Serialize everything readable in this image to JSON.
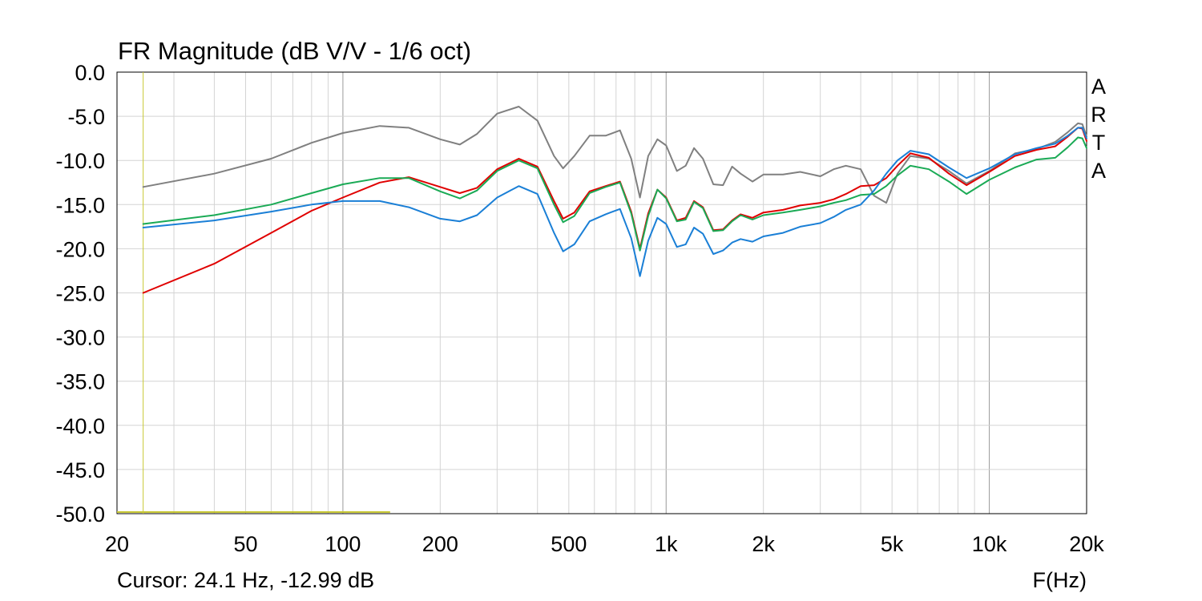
{
  "chart_data": {
    "type": "line",
    "title": "FR Magnitude (dB V/V - 1/6 oct)",
    "xlabel": "F(Hz)",
    "ylabel": "",
    "x_scale": "log",
    "xlim": [
      20,
      20000
    ],
    "ylim": [
      -50,
      0
    ],
    "x_ticks": [
      20,
      50,
      100,
      200,
      500,
      1000,
      2000,
      5000,
      10000,
      20000
    ],
    "x_tick_labels": [
      "20",
      "50",
      "100",
      "200",
      "500",
      "1k",
      "2k",
      "5k",
      "10k",
      "20k"
    ],
    "y_ticks": [
      0,
      -5,
      -10,
      -15,
      -20,
      -25,
      -30,
      -35,
      -40,
      -45,
      -50
    ],
    "y_tick_labels": [
      "0.0",
      "-5.0",
      "-10.0",
      "-15.0",
      "-20.0",
      "-25.0",
      "-30.0",
      "-35.0",
      "-40.0",
      "-45.0",
      "-50.0"
    ],
    "grid": true,
    "watermark": [
      "A",
      "R",
      "T",
      "A"
    ],
    "cursor": {
      "label": "Cursor: 24.1 Hz, -12.99 dB",
      "freq": 24.1,
      "db": -12.99
    },
    "colors": {
      "gray": "#808080",
      "red": "#e00000",
      "green": "#1aaa55",
      "blue": "#1a7fd6",
      "grid_major": "#999999",
      "grid_minor": "#d4d4d4",
      "cursor": "#c8c832"
    },
    "series": [
      {
        "name": "gray",
        "color": "#808080",
        "points": [
          [
            24.1,
            -13.0
          ],
          [
            40,
            -11.5
          ],
          [
            60,
            -9.8
          ],
          [
            80,
            -8.0
          ],
          [
            100,
            -6.9
          ],
          [
            130,
            -6.1
          ],
          [
            160,
            -6.3
          ],
          [
            200,
            -7.6
          ],
          [
            230,
            -8.2
          ],
          [
            260,
            -7.0
          ],
          [
            300,
            -4.7
          ],
          [
            350,
            -3.9
          ],
          [
            400,
            -5.5
          ],
          [
            450,
            -9.5
          ],
          [
            480,
            -10.9
          ],
          [
            520,
            -9.5
          ],
          [
            580,
            -7.2
          ],
          [
            650,
            -7.2
          ],
          [
            720,
            -6.6
          ],
          [
            780,
            -9.8
          ],
          [
            830,
            -14.2
          ],
          [
            880,
            -9.5
          ],
          [
            940,
            -7.6
          ],
          [
            1000,
            -8.3
          ],
          [
            1080,
            -11.2
          ],
          [
            1150,
            -10.6
          ],
          [
            1220,
            -8.6
          ],
          [
            1300,
            -9.8
          ],
          [
            1400,
            -12.7
          ],
          [
            1500,
            -12.8
          ],
          [
            1600,
            -10.7
          ],
          [
            1700,
            -11.5
          ],
          [
            1850,
            -12.4
          ],
          [
            2000,
            -11.6
          ],
          [
            2300,
            -11.6
          ],
          [
            2600,
            -11.3
          ],
          [
            3000,
            -11.8
          ],
          [
            3300,
            -11.0
          ],
          [
            3600,
            -10.6
          ],
          [
            4000,
            -11.0
          ],
          [
            4400,
            -14.0
          ],
          [
            4800,
            -14.8
          ],
          [
            5200,
            -11.5
          ],
          [
            5700,
            -9.5
          ],
          [
            6500,
            -9.8
          ],
          [
            7500,
            -11.2
          ],
          [
            8500,
            -12.6
          ],
          [
            10000,
            -11.2
          ],
          [
            12000,
            -9.2
          ],
          [
            14000,
            -8.7
          ],
          [
            16000,
            -7.9
          ],
          [
            17500,
            -6.8
          ],
          [
            18800,
            -5.8
          ],
          [
            19400,
            -5.9
          ],
          [
            20000,
            -7.3
          ]
        ]
      },
      {
        "name": "red",
        "color": "#e00000",
        "points": [
          [
            24.1,
            -25.0
          ],
          [
            40,
            -21.7
          ],
          [
            60,
            -18.2
          ],
          [
            80,
            -15.7
          ],
          [
            100,
            -14.2
          ],
          [
            130,
            -12.5
          ],
          [
            160,
            -11.9
          ],
          [
            200,
            -13.0
          ],
          [
            230,
            -13.7
          ],
          [
            260,
            -13.1
          ],
          [
            300,
            -11.0
          ],
          [
            350,
            -9.8
          ],
          [
            400,
            -10.7
          ],
          [
            450,
            -14.6
          ],
          [
            480,
            -16.6
          ],
          [
            520,
            -15.9
          ],
          [
            580,
            -13.5
          ],
          [
            650,
            -12.9
          ],
          [
            720,
            -12.4
          ],
          [
            780,
            -15.8
          ],
          [
            830,
            -20.0
          ],
          [
            880,
            -16.0
          ],
          [
            940,
            -13.3
          ],
          [
            1000,
            -14.2
          ],
          [
            1080,
            -16.8
          ],
          [
            1150,
            -16.5
          ],
          [
            1220,
            -14.6
          ],
          [
            1300,
            -15.3
          ],
          [
            1400,
            -17.9
          ],
          [
            1500,
            -17.8
          ],
          [
            1600,
            -16.8
          ],
          [
            1700,
            -16.1
          ],
          [
            1850,
            -16.5
          ],
          [
            2000,
            -15.9
          ],
          [
            2300,
            -15.6
          ],
          [
            2600,
            -15.1
          ],
          [
            3000,
            -14.8
          ],
          [
            3300,
            -14.4
          ],
          [
            3600,
            -13.8
          ],
          [
            4000,
            -12.9
          ],
          [
            4400,
            -12.8
          ],
          [
            4800,
            -12.0
          ],
          [
            5200,
            -10.6
          ],
          [
            5700,
            -9.2
          ],
          [
            6500,
            -9.7
          ],
          [
            7500,
            -11.5
          ],
          [
            8500,
            -12.8
          ],
          [
            10000,
            -11.3
          ],
          [
            12000,
            -9.5
          ],
          [
            14000,
            -8.8
          ],
          [
            16000,
            -8.4
          ],
          [
            17500,
            -7.3
          ],
          [
            18800,
            -6.3
          ],
          [
            19400,
            -6.4
          ],
          [
            20000,
            -7.8
          ]
        ]
      },
      {
        "name": "green",
        "color": "#1aaa55",
        "points": [
          [
            24.1,
            -17.2
          ],
          [
            40,
            -16.2
          ],
          [
            60,
            -15.0
          ],
          [
            80,
            -13.7
          ],
          [
            100,
            -12.7
          ],
          [
            130,
            -12.0
          ],
          [
            160,
            -12.0
          ],
          [
            200,
            -13.5
          ],
          [
            230,
            -14.3
          ],
          [
            260,
            -13.4
          ],
          [
            300,
            -11.2
          ],
          [
            350,
            -10.0
          ],
          [
            400,
            -10.9
          ],
          [
            450,
            -15.0
          ],
          [
            480,
            -17.0
          ],
          [
            520,
            -16.3
          ],
          [
            580,
            -13.7
          ],
          [
            650,
            -13.0
          ],
          [
            720,
            -12.5
          ],
          [
            780,
            -16.0
          ],
          [
            830,
            -20.2
          ],
          [
            880,
            -16.3
          ],
          [
            940,
            -13.3
          ],
          [
            1000,
            -14.3
          ],
          [
            1080,
            -16.9
          ],
          [
            1150,
            -16.7
          ],
          [
            1220,
            -14.7
          ],
          [
            1300,
            -15.4
          ],
          [
            1400,
            -18.0
          ],
          [
            1500,
            -17.9
          ],
          [
            1600,
            -16.9
          ],
          [
            1700,
            -16.2
          ],
          [
            1850,
            -16.7
          ],
          [
            2000,
            -16.2
          ],
          [
            2300,
            -15.9
          ],
          [
            2600,
            -15.6
          ],
          [
            3000,
            -15.2
          ],
          [
            3300,
            -14.8
          ],
          [
            3600,
            -14.5
          ],
          [
            4000,
            -13.9
          ],
          [
            4400,
            -13.8
          ],
          [
            4800,
            -12.9
          ],
          [
            5200,
            -11.7
          ],
          [
            5700,
            -10.6
          ],
          [
            6500,
            -11.0
          ],
          [
            7500,
            -12.4
          ],
          [
            8500,
            -13.8
          ],
          [
            10000,
            -12.2
          ],
          [
            12000,
            -10.8
          ],
          [
            14000,
            -9.9
          ],
          [
            16000,
            -9.7
          ],
          [
            17500,
            -8.5
          ],
          [
            18800,
            -7.4
          ],
          [
            19400,
            -7.5
          ],
          [
            20000,
            -8.6
          ]
        ]
      },
      {
        "name": "blue",
        "color": "#1a7fd6",
        "points": [
          [
            24.1,
            -17.6
          ],
          [
            40,
            -16.8
          ],
          [
            60,
            -15.8
          ],
          [
            80,
            -15.0
          ],
          [
            100,
            -14.6
          ],
          [
            130,
            -14.6
          ],
          [
            160,
            -15.3
          ],
          [
            200,
            -16.6
          ],
          [
            230,
            -16.9
          ],
          [
            260,
            -16.2
          ],
          [
            300,
            -14.2
          ],
          [
            350,
            -12.9
          ],
          [
            400,
            -13.8
          ],
          [
            450,
            -18.2
          ],
          [
            480,
            -20.3
          ],
          [
            520,
            -19.5
          ],
          [
            580,
            -16.9
          ],
          [
            650,
            -16.1
          ],
          [
            720,
            -15.5
          ],
          [
            780,
            -18.8
          ],
          [
            830,
            -23.1
          ],
          [
            880,
            -19.1
          ],
          [
            940,
            -16.5
          ],
          [
            1000,
            -17.2
          ],
          [
            1080,
            -19.8
          ],
          [
            1150,
            -19.5
          ],
          [
            1220,
            -17.6
          ],
          [
            1300,
            -18.3
          ],
          [
            1400,
            -20.6
          ],
          [
            1500,
            -20.2
          ],
          [
            1600,
            -19.3
          ],
          [
            1700,
            -18.9
          ],
          [
            1850,
            -19.2
          ],
          [
            2000,
            -18.6
          ],
          [
            2300,
            -18.2
          ],
          [
            2600,
            -17.5
          ],
          [
            3000,
            -17.1
          ],
          [
            3300,
            -16.4
          ],
          [
            3600,
            -15.6
          ],
          [
            4000,
            -15.0
          ],
          [
            4400,
            -13.4
          ],
          [
            4800,
            -11.5
          ],
          [
            5200,
            -10.0
          ],
          [
            5700,
            -8.9
          ],
          [
            6500,
            -9.3
          ],
          [
            7500,
            -10.8
          ],
          [
            8500,
            -12.0
          ],
          [
            10000,
            -10.9
          ],
          [
            12000,
            -9.3
          ],
          [
            14000,
            -8.6
          ],
          [
            16000,
            -8.1
          ],
          [
            17500,
            -7.2
          ],
          [
            18800,
            -6.3
          ],
          [
            19400,
            -6.3
          ],
          [
            20000,
            -7.5
          ]
        ]
      }
    ]
  }
}
